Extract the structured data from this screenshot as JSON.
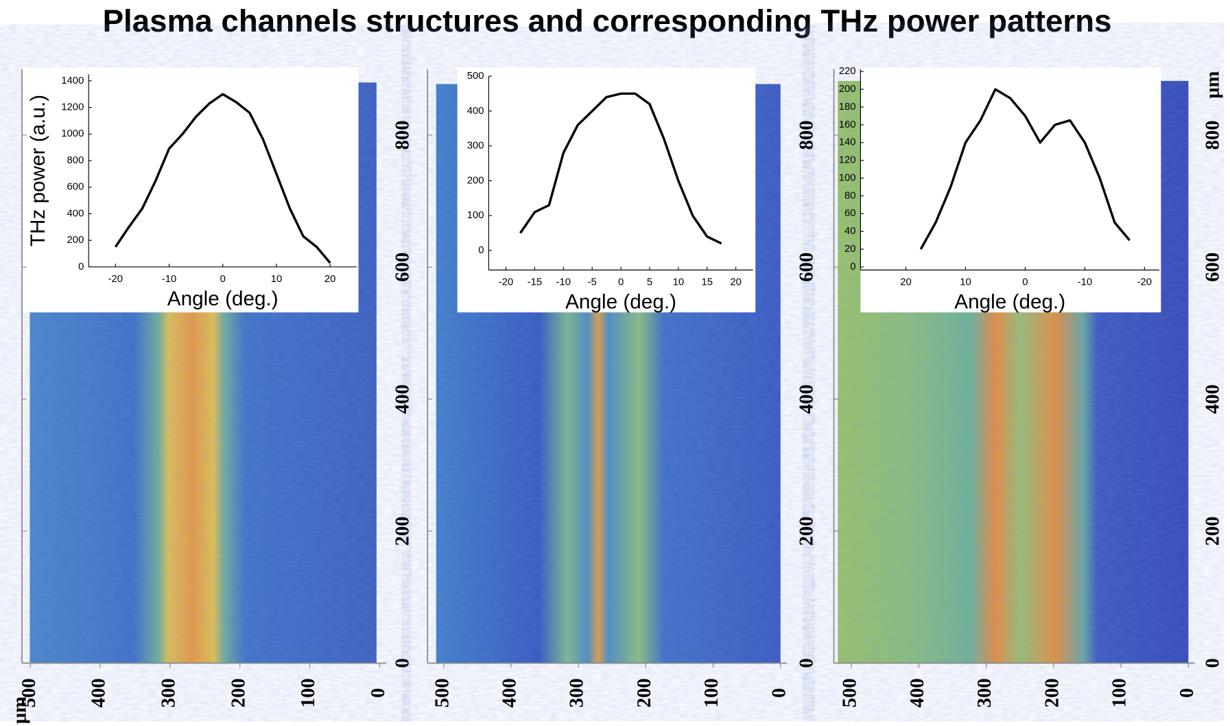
{
  "title": "Plasma channels structures and corresponding THz power patterns",
  "x_unit": "μm",
  "y_unit": "μm",
  "chart_data": [
    {
      "type": "heatmap",
      "xlim": [
        512,
        0
      ],
      "ylim": [
        0,
        900
      ],
      "xticks": [
        500,
        400,
        300,
        200,
        100,
        0
      ],
      "yticks": [
        0,
        200,
        400,
        600,
        800
      ]
    },
    {
      "type": "heatmap",
      "xlim": [
        524,
        0
      ],
      "ylim": [
        0,
        900
      ],
      "xticks": [
        500,
        400,
        300,
        200,
        100,
        0
      ],
      "yticks": [
        0,
        200,
        400,
        600,
        800
      ]
    },
    {
      "type": "heatmap",
      "xlim": [
        526,
        0
      ],
      "ylim": [
        0,
        900
      ],
      "xticks": [
        500,
        400,
        300,
        200,
        100,
        0
      ],
      "yticks": [
        0,
        200,
        400,
        600,
        800
      ]
    },
    {
      "type": "line",
      "xlabel": "Angle (deg.)",
      "ylabel": "THz power (a.u.)",
      "color": "#000000",
      "x": [
        -20,
        -17.5,
        -15,
        -12.5,
        -10,
        -7.5,
        -5,
        -2.5,
        0,
        2.5,
        5,
        7.5,
        10,
        12.5,
        15,
        17.5,
        20
      ],
      "values": [
        150,
        300,
        440,
        650,
        890,
        1000,
        1130,
        1230,
        1300,
        1240,
        1160,
        960,
        700,
        440,
        230,
        150,
        30
      ],
      "xlim": [
        -25,
        25
      ],
      "ylim": [
        0,
        1450
      ],
      "xticks": [
        -20,
        -10,
        0,
        10,
        20
      ],
      "yticks": [
        0,
        200,
        400,
        600,
        800,
        1000,
        1200,
        1400
      ]
    },
    {
      "type": "line",
      "xlabel": "Angle (deg.)",
      "color": "#000000",
      "x": [
        -17.5,
        -15,
        -12.5,
        -10,
        -7.5,
        -5,
        -2.5,
        0,
        2.5,
        5,
        7.5,
        10,
        12.5,
        15,
        17.5
      ],
      "values": [
        50,
        110,
        130,
        280,
        360,
        400,
        440,
        450,
        450,
        420,
        320,
        200,
        100,
        40,
        20
      ],
      "xlim": [
        -23,
        23
      ],
      "ylim": [
        -56,
        500
      ],
      "xticks": [
        -20,
        -15,
        -10,
        -5,
        0,
        5,
        10,
        15,
        20
      ],
      "yticks": [
        0,
        100,
        200,
        300,
        400,
        500
      ]
    },
    {
      "type": "line",
      "xlabel": "Angle (deg.)",
      "color": "#000000",
      "x": [
        17.5,
        15,
        12.5,
        10,
        7.5,
        5,
        2.5,
        0,
        -2.5,
        -5,
        -7.5,
        -10,
        -12.5,
        -15,
        -17.5
      ],
      "values": [
        20,
        50,
        90,
        140,
        165,
        200,
        190,
        170,
        140,
        160,
        165,
        140,
        100,
        50,
        30
      ],
      "xlim": [
        27.6,
        -22.5
      ],
      "ylim": [
        -3.5,
        222.7
      ],
      "xticks": [
        20,
        10,
        0,
        -10,
        -20
      ],
      "yticks": [
        0,
        20,
        40,
        60,
        80,
        100,
        120,
        140,
        160,
        180,
        200,
        220
      ]
    }
  ]
}
